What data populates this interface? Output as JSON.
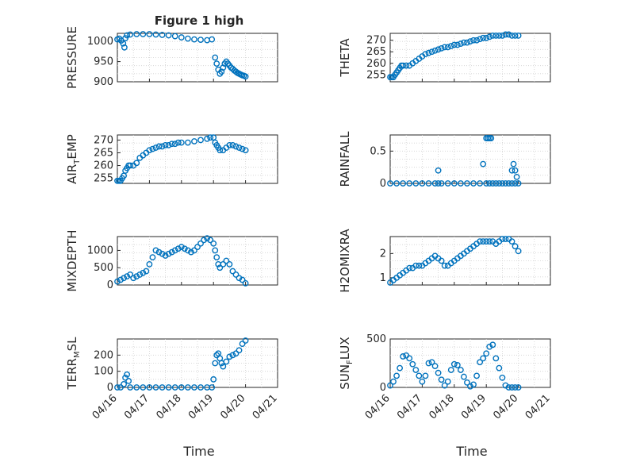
{
  "title": "Figure 1 high",
  "xlabel": "Time",
  "colors": {
    "marker": "#0072BD",
    "axis": "#262626",
    "grid": "#d0d0d0"
  },
  "chart_data": [
    {
      "type": "scatter",
      "name": "pressure",
      "ylabel": "PRESSURE",
      "ylim": [
        900,
        1020
      ],
      "yticks": [
        900,
        950,
        1000
      ],
      "x": [
        0,
        0.06,
        0.12,
        0.18,
        0.22,
        0.25,
        0.3,
        0.4,
        0.6,
        0.8,
        1,
        1.2,
        1.4,
        1.6,
        1.8,
        2,
        2.2,
        2.4,
        2.6,
        2.8,
        2.95,
        3.05,
        3.1,
        3.15,
        3.2,
        3.25,
        3.3,
        3.35,
        3.4,
        3.45,
        3.5,
        3.55,
        3.6,
        3.65,
        3.7,
        3.75,
        3.8,
        3.85,
        3.9,
        3.95,
        4.0
      ],
      "values": [
        1005,
        1007,
        1002,
        995,
        985,
        1008,
        1015,
        1017,
        1018,
        1018,
        1018,
        1017,
        1016,
        1015,
        1013,
        1010,
        1007,
        1005,
        1004,
        1003,
        1005,
        960,
        945,
        930,
        920,
        925,
        935,
        945,
        950,
        945,
        940,
        935,
        932,
        928,
        925,
        922,
        920,
        918,
        916,
        915,
        913
      ]
    },
    {
      "type": "scatter",
      "name": "theta",
      "ylabel": "THETA",
      "ylim": [
        252,
        273
      ],
      "yticks": [
        255,
        260,
        265,
        270
      ],
      "x": [
        0,
        0.05,
        0.1,
        0.15,
        0.2,
        0.25,
        0.3,
        0.35,
        0.4,
        0.5,
        0.6,
        0.7,
        0.8,
        0.9,
        1,
        1.1,
        1.2,
        1.3,
        1.4,
        1.5,
        1.6,
        1.7,
        1.8,
        1.9,
        2,
        2.1,
        2.2,
        2.3,
        2.4,
        2.5,
        2.6,
        2.7,
        2.8,
        2.9,
        3,
        3.1,
        3.2,
        3.3,
        3.4,
        3.5,
        3.6,
        3.7,
        3.8,
        3.9,
        4.0
      ],
      "values": [
        254,
        254,
        254,
        255,
        256,
        257,
        258,
        259,
        259,
        259,
        259,
        260,
        261,
        262,
        263,
        264,
        264.5,
        265,
        265.5,
        266,
        266.5,
        267,
        267,
        267.5,
        268,
        268,
        268.5,
        269,
        269,
        269.5,
        270,
        270,
        270.5,
        271,
        271,
        271.5,
        272,
        272,
        272,
        272,
        272.5,
        272.5,
        272,
        272,
        272
      ]
    },
    {
      "type": "scatter",
      "name": "air_temp",
      "ylabel": "AIR",
      "ylabel_sub": "T",
      "ylabel_rest": "EMP",
      "ylim": [
        253,
        272
      ],
      "yticks": [
        255,
        260,
        265,
        270
      ],
      "x": [
        0,
        0.05,
        0.1,
        0.15,
        0.2,
        0.25,
        0.3,
        0.35,
        0.4,
        0.5,
        0.6,
        0.7,
        0.8,
        0.9,
        1,
        1.1,
        1.2,
        1.3,
        1.4,
        1.5,
        1.6,
        1.7,
        1.8,
        1.9,
        2,
        2.2,
        2.4,
        2.6,
        2.8,
        2.9,
        3,
        3.05,
        3.1,
        3.15,
        3.2,
        3.3,
        3.4,
        3.5,
        3.6,
        3.7,
        3.8,
        3.9,
        4.0
      ],
      "values": [
        254,
        254,
        254,
        255,
        256,
        258,
        259,
        260,
        260,
        260,
        261,
        263,
        264,
        265,
        266,
        266.5,
        267,
        267.5,
        267.5,
        268,
        268,
        268.5,
        268.5,
        269,
        269,
        269,
        269.5,
        270,
        270.5,
        271,
        271,
        269,
        268,
        267,
        266,
        266,
        267,
        268,
        268,
        267.5,
        267,
        266.5,
        266
      ]
    },
    {
      "type": "scatter",
      "name": "rainfall",
      "ylabel": "RAINFALL",
      "ylim": [
        0,
        0.75
      ],
      "yticks": [
        0,
        0.5
      ],
      "x": [
        0,
        0.2,
        0.4,
        0.6,
        0.8,
        1,
        1.2,
        1.4,
        1.5,
        1.6,
        1.8,
        2,
        2.2,
        2.4,
        2.6,
        2.8,
        3,
        3.1,
        3.2,
        3.3,
        3.4,
        3.5,
        3.6,
        3.7,
        3.8,
        3.9,
        4.0,
        1.5,
        2.9,
        3.0,
        3.05,
        3.1,
        3.15,
        3.8,
        3.85,
        3.9,
        3.95
      ],
      "values": [
        0,
        0,
        0,
        0,
        0,
        0,
        0,
        0,
        0,
        0,
        0,
        0,
        0,
        0,
        0,
        0,
        0,
        0,
        0,
        0,
        0,
        0,
        0,
        0,
        0,
        0,
        0,
        0.2,
        0.3,
        0.7,
        0.7,
        0.7,
        0.7,
        0.2,
        0.3,
        0.2,
        0.1
      ]
    },
    {
      "type": "scatter",
      "name": "mixdepth",
      "ylabel": "MIXDEPTH",
      "ylim": [
        0,
        1400
      ],
      "yticks": [
        0,
        500,
        1000
      ],
      "x": [
        0,
        0.1,
        0.2,
        0.3,
        0.4,
        0.5,
        0.6,
        0.7,
        0.8,
        0.9,
        1,
        1.1,
        1.2,
        1.3,
        1.4,
        1.5,
        1.6,
        1.7,
        1.8,
        1.9,
        2,
        2.1,
        2.2,
        2.3,
        2.4,
        2.5,
        2.6,
        2.7,
        2.8,
        2.9,
        3,
        3.05,
        3.1,
        3.15,
        3.2,
        3.3,
        3.4,
        3.5,
        3.6,
        3.7,
        3.8,
        3.9,
        4.0
      ],
      "values": [
        100,
        150,
        200,
        250,
        300,
        200,
        250,
        300,
        350,
        400,
        600,
        800,
        1000,
        950,
        900,
        850,
        900,
        950,
        1000,
        1050,
        1100,
        1050,
        1000,
        950,
        1000,
        1100,
        1200,
        1300,
        1350,
        1300,
        1200,
        1000,
        800,
        600,
        500,
        600,
        700,
        600,
        400,
        300,
        200,
        150,
        50
      ]
    },
    {
      "type": "scatter",
      "name": "h2omixra",
      "ylabel": "H2OMIXRA",
      "ylim": [
        0.7,
        2.7
      ],
      "yticks": [
        1,
        2
      ],
      "x": [
        0,
        0.1,
        0.2,
        0.3,
        0.4,
        0.5,
        0.6,
        0.7,
        0.8,
        0.9,
        1,
        1.1,
        1.2,
        1.3,
        1.4,
        1.5,
        1.6,
        1.7,
        1.8,
        1.9,
        2,
        2.1,
        2.2,
        2.3,
        2.4,
        2.5,
        2.6,
        2.7,
        2.8,
        2.9,
        3,
        3.1,
        3.2,
        3.3,
        3.4,
        3.5,
        3.6,
        3.7,
        3.8,
        3.9,
        4.0
      ],
      "values": [
        0.8,
        0.9,
        1.0,
        1.1,
        1.2,
        1.3,
        1.4,
        1.4,
        1.5,
        1.5,
        1.5,
        1.6,
        1.7,
        1.8,
        1.9,
        1.8,
        1.7,
        1.5,
        1.5,
        1.6,
        1.7,
        1.8,
        1.9,
        2.0,
        2.1,
        2.2,
        2.3,
        2.4,
        2.5,
        2.5,
        2.5,
        2.5,
        2.5,
        2.4,
        2.5,
        2.6,
        2.6,
        2.6,
        2.5,
        2.3,
        2.1
      ]
    },
    {
      "type": "scatter",
      "name": "terr_msl",
      "ylabel": "TERR",
      "ylabel_sub": "M",
      "ylabel_rest": "SL",
      "ylim": [
        0,
        300
      ],
      "yticks": [
        0,
        100,
        200
      ],
      "x": [
        0,
        0.1,
        0.2,
        0.25,
        0.3,
        0.35,
        0.4,
        0.6,
        0.8,
        1,
        1.2,
        1.4,
        1.6,
        1.8,
        2,
        2.2,
        2.4,
        2.6,
        2.8,
        2.95,
        3.0,
        3.05,
        3.1,
        3.15,
        3.2,
        3.25,
        3.3,
        3.4,
        3.5,
        3.6,
        3.7,
        3.8,
        3.9,
        4.0
      ],
      "values": [
        0,
        0,
        20,
        60,
        80,
        40,
        0,
        0,
        0,
        0,
        0,
        0,
        0,
        0,
        0,
        0,
        0,
        0,
        0,
        0,
        50,
        150,
        200,
        210,
        180,
        150,
        130,
        160,
        190,
        200,
        210,
        230,
        270,
        290
      ]
    },
    {
      "type": "scatter",
      "name": "sun_flux",
      "ylabel": "SUN",
      "ylabel_sub": "F",
      "ylabel_rest": "LUX",
      "ylim": [
        0,
        500
      ],
      "yticks": [
        0,
        500
      ],
      "x": [
        0,
        0.1,
        0.2,
        0.3,
        0.4,
        0.5,
        0.6,
        0.7,
        0.8,
        0.9,
        1,
        1.1,
        1.2,
        1.3,
        1.4,
        1.5,
        1.6,
        1.7,
        1.8,
        1.9,
        2,
        2.1,
        2.2,
        2.3,
        2.4,
        2.5,
        2.6,
        2.7,
        2.8,
        2.9,
        3,
        3.1,
        3.2,
        3.3,
        3.4,
        3.5,
        3.6,
        3.7,
        3.8,
        3.9,
        4.0
      ],
      "values": [
        20,
        60,
        120,
        200,
        320,
        330,
        300,
        240,
        180,
        120,
        60,
        120,
        250,
        260,
        220,
        150,
        80,
        20,
        60,
        180,
        240,
        230,
        180,
        110,
        50,
        10,
        30,
        120,
        260,
        300,
        350,
        420,
        440,
        300,
        200,
        100,
        20,
        0,
        0,
        0,
        0
      ]
    }
  ],
  "x_axis": {
    "ticks": [
      "04/16",
      "04/17",
      "04/18",
      "04/19",
      "04/20",
      "04/21"
    ],
    "xlim": [
      0,
      5
    ]
  }
}
